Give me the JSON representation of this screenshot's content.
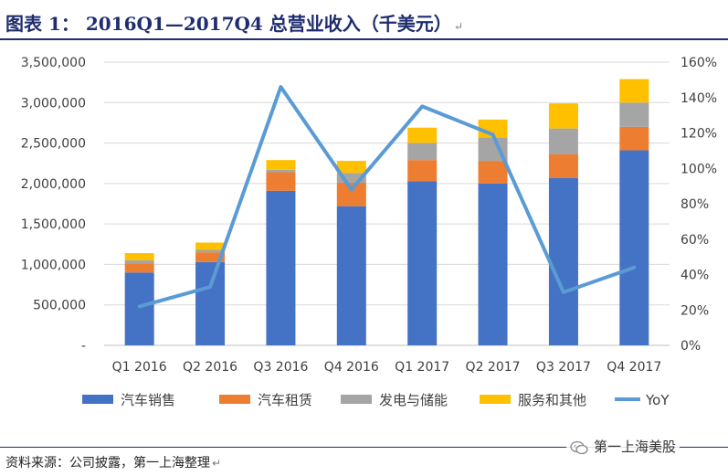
{
  "page": {
    "title": "图表 1： 2016Q1—2017Q4 总营业收入（千美元）",
    "source": "资料来源：公司披露，第一上海整理",
    "paragraph_mark": "↵",
    "watermark": "第一上海美股",
    "watermark_icon": "wechat-icon"
  },
  "colors": {
    "car_sales": "#4472c4",
    "car_leasing": "#ed7d31",
    "energy": "#a5a5a5",
    "services": "#ffc000",
    "yoy": "#5b9bd5",
    "title": "#1f2d6e"
  },
  "chart_data": {
    "type": "bar",
    "stacked": true,
    "categories": [
      "Q1 2016",
      "Q2 2016",
      "Q3 2016",
      "Q4 2016",
      "Q1 2017",
      "Q2 2017",
      "Q3 2017",
      "Q4 2017"
    ],
    "series": [
      {
        "name": "汽车销售",
        "key": "car_sales",
        "values": [
          900000,
          1030000,
          1910000,
          1720000,
          2030000,
          2000000,
          2070000,
          2410000
        ]
      },
      {
        "name": "汽车租赁",
        "key": "car_leasing",
        "values": [
          110000,
          120000,
          230000,
          290000,
          260000,
          280000,
          290000,
          290000
        ]
      },
      {
        "name": "发电与储能",
        "key": "energy",
        "values": [
          40000,
          30000,
          30000,
          120000,
          210000,
          290000,
          320000,
          300000
        ]
      },
      {
        "name": "服务和其他",
        "key": "services",
        "values": [
          90000,
          90000,
          120000,
          150000,
          190000,
          220000,
          310000,
          290000
        ]
      }
    ],
    "line_series": {
      "name": "YoY",
      "key": "yoy",
      "axis": "right",
      "values": [
        22,
        33,
        146,
        88,
        135,
        119,
        30,
        44
      ]
    },
    "y_left": {
      "min": 0,
      "max": 3500000,
      "step": 500000,
      "tick_labels": [
        "-",
        "500,000",
        "1,000,000",
        "1,500,000",
        "2,000,000",
        "2,500,000",
        "3,000,000",
        "3,500,000"
      ]
    },
    "y_right": {
      "min": 0,
      "max": 160,
      "step": 20,
      "tick_labels": [
        "0%",
        "20%",
        "40%",
        "60%",
        "80%",
        "100%",
        "120%",
        "140%",
        "160%"
      ]
    },
    "grid": true,
    "legend_position": "bottom"
  }
}
